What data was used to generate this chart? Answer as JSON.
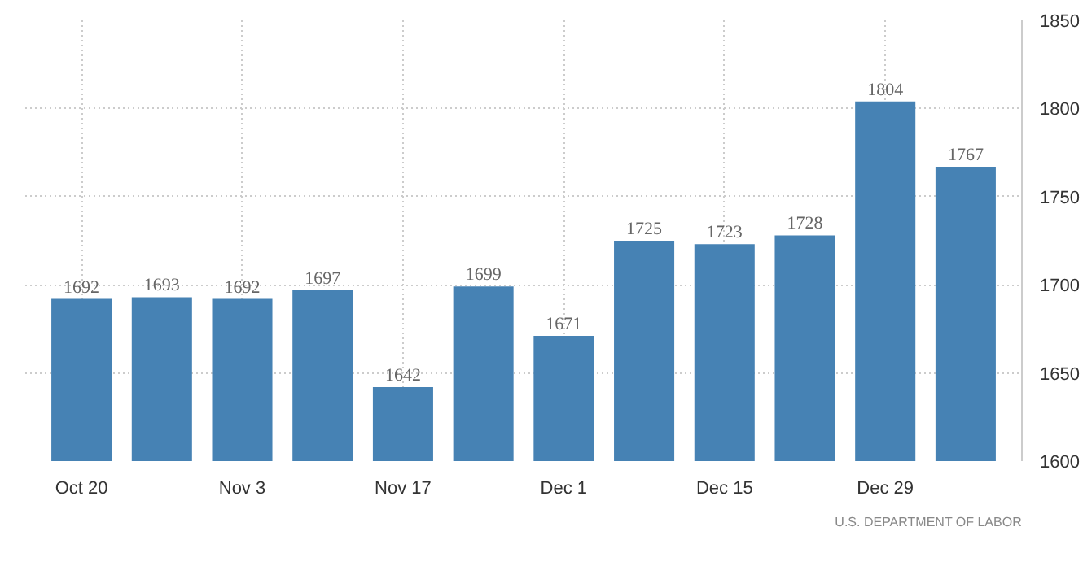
{
  "chart_data": {
    "type": "bar",
    "categories": [
      "Oct 20",
      null,
      "Nov 3",
      null,
      "Nov 17",
      null,
      "Dec 1",
      null,
      "Dec 15",
      null,
      "Dec 29",
      null
    ],
    "values": [
      1692,
      1693,
      1692,
      1697,
      1642,
      1699,
      1671,
      1725,
      1723,
      1728,
      1804,
      1767
    ],
    "color": "#4682b4",
    "ylim": [
      1600,
      1850
    ],
    "yticks": [
      1600,
      1650,
      1700,
      1750,
      1800,
      1850
    ],
    "grid": true,
    "data_labels": true,
    "annotations": [
      "U.S. DEPARTMENT OF LABOR"
    ]
  }
}
